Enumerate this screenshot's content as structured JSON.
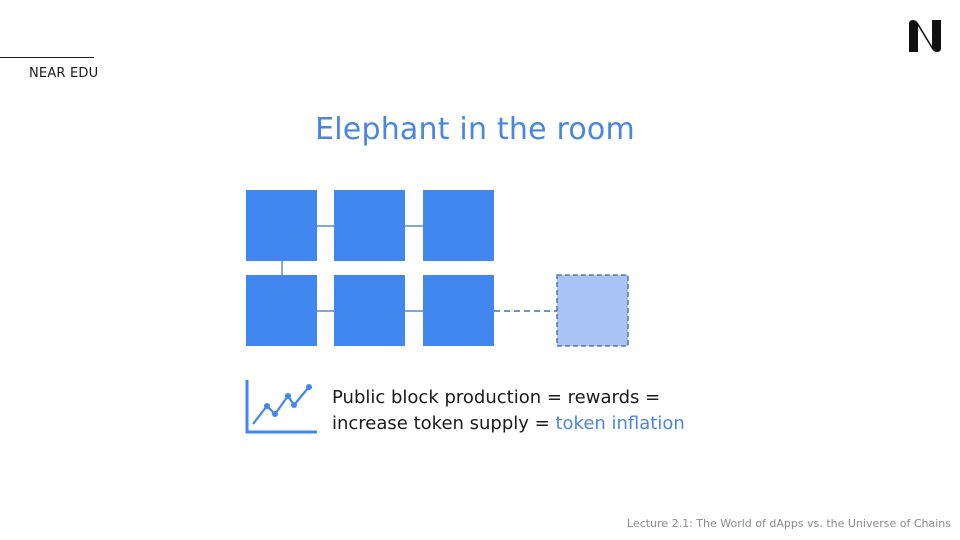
{
  "header": {
    "brand_label": "NEAR EDU"
  },
  "logo": {
    "name": "near-logo-icon",
    "color": "#111111"
  },
  "slide": {
    "title": "Elephant in the room",
    "caption_line1": "Public block production = rewards =",
    "caption_line2_prefix": "increase token supply = ",
    "caption_highlight": "token inflation"
  },
  "diagram": {
    "blocks": 6,
    "pending_blocks": 1,
    "block_color": "#4286f0",
    "pending_color": "#a7c4f4"
  },
  "icons": {
    "chart": "line-chart-icon"
  },
  "footer": {
    "lecture": "Lecture 2.1: The World of dApps vs. the Universe of Chains"
  },
  "colors": {
    "accent": "#4a86e0",
    "text": "#1a1a1a",
    "muted": "#8a8a8a"
  }
}
